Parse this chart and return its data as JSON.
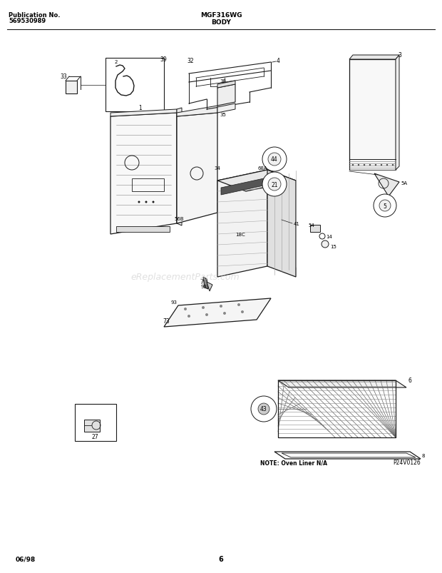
{
  "title_left1": "Publication No.",
  "title_left2": "569530989",
  "title_center": "MGF316WG",
  "title_sub": "BODY",
  "footer_left": "06/98",
  "footer_center": "6",
  "watermark": "eReplacementParts.com",
  "note_text": "NOTE: Oven Liner N/A",
  "part_code": "P24V0126",
  "background_color": "#ffffff",
  "lc": "#1a1a1a"
}
